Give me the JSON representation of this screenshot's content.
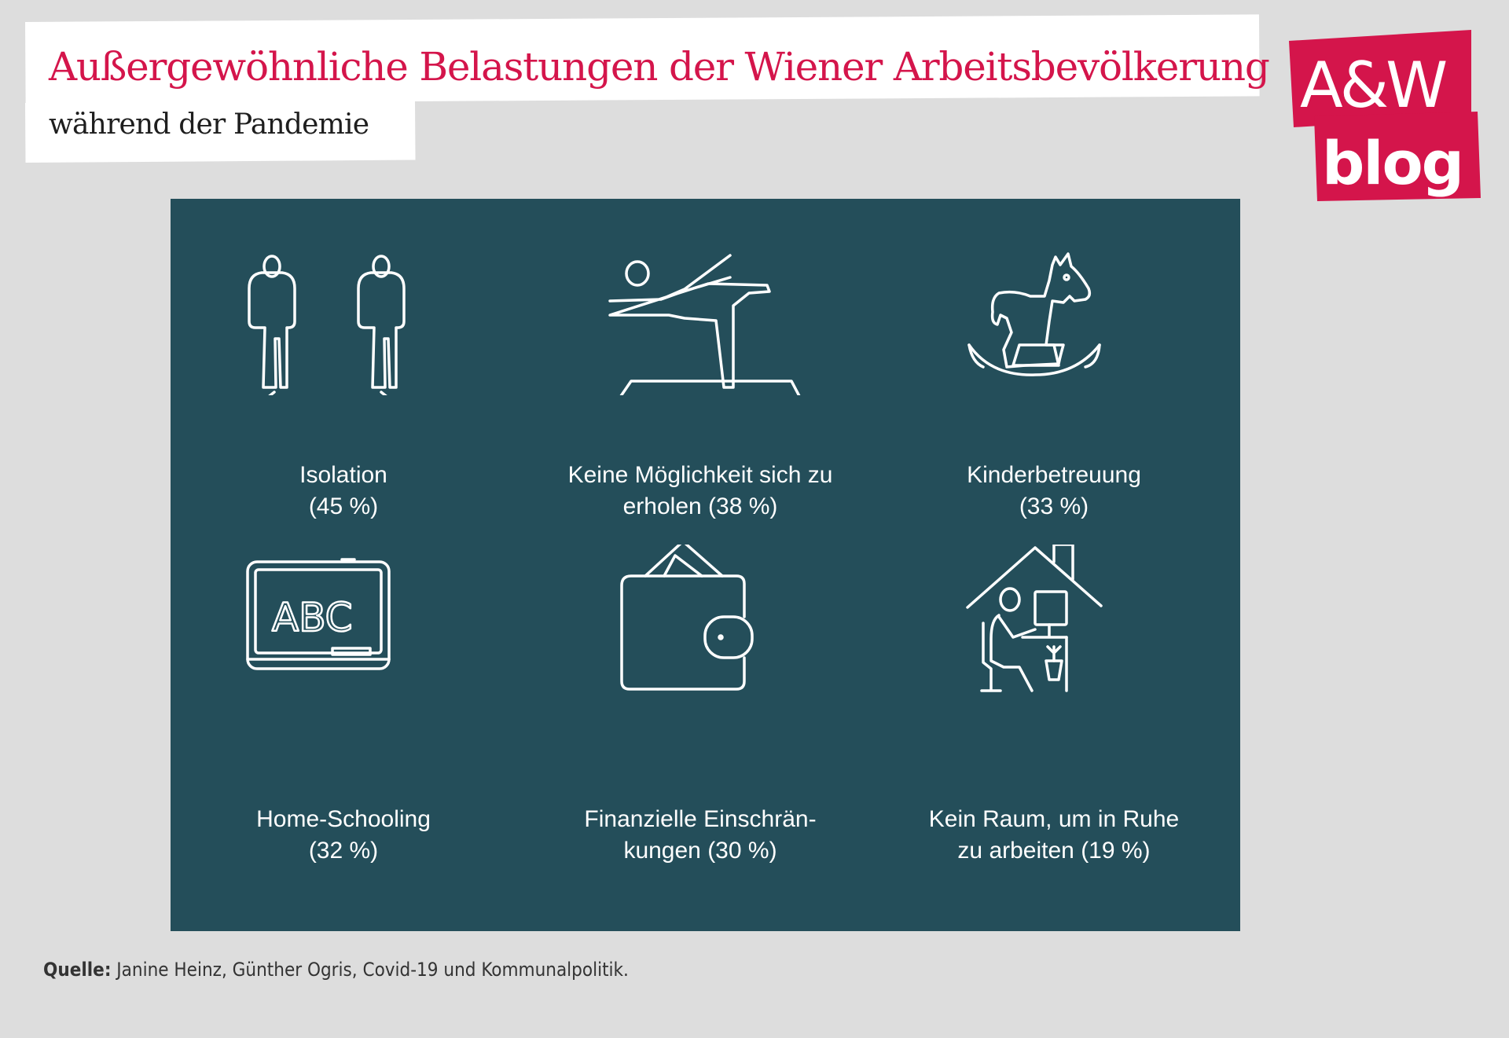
{
  "header": {
    "title": "Außergewöhnliche Belastungen der Wiener Arbeitsbevölkerung",
    "subtitle": "während der Pandemie"
  },
  "logo": {
    "line1": "A&W",
    "line2": "blog",
    "color": "#d4154b"
  },
  "panel": {
    "background": "#244e5a",
    "items": [
      {
        "icon": "two-people-distance-icon",
        "line1": "Isolation",
        "line2": "(45 %)",
        "value": 45
      },
      {
        "icon": "yoga-mat-icon",
        "line1": "Keine Möglichkeit sich zu",
        "line2": "erholen (38 %)",
        "value": 38
      },
      {
        "icon": "rocking-horse-icon",
        "line1": "Kinderbetreuung",
        "line2": "(33 %)",
        "value": 33
      },
      {
        "icon": "chalkboard-abc-icon",
        "line1": "Home-Schooling",
        "line2": "(32 %)",
        "value": 32
      },
      {
        "icon": "wallet-icon",
        "line1": "Finanzielle Einschrän-",
        "line2": "kungen (30 %)",
        "value": 30
      },
      {
        "icon": "home-office-icon",
        "line1": "Kein Raum, um in Ruhe",
        "line2": "zu arbeiten (19 %)",
        "value": 19
      }
    ]
  },
  "source": {
    "label": "Quelle:",
    "text": " Janine Heinz, Günther Ogris, Covid-19 und Kommunalpolitik."
  },
  "icon_text": {
    "abc": "ABC"
  }
}
